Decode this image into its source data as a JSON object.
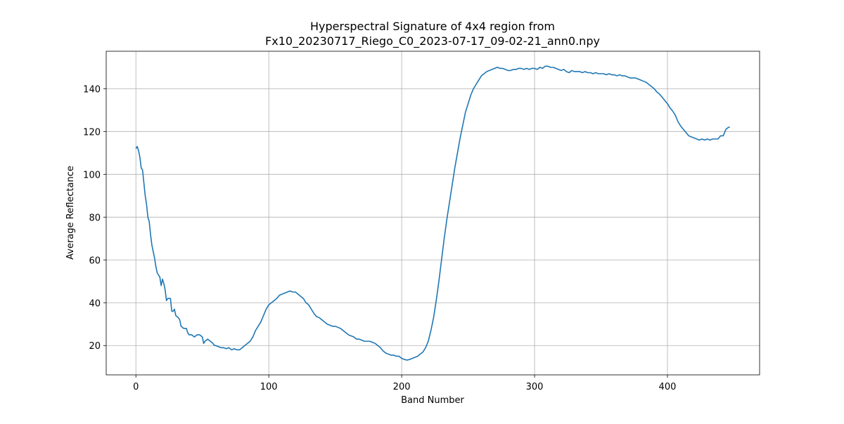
{
  "chart_data": {
    "type": "line",
    "title": [
      "Hyperspectral Signature of 4x4 region from",
      "Fx10_20230717_Riego_C0_2023-07-17_09-02-21_ann0.npy"
    ],
    "x_label": "Band Number",
    "y_label": "Average Reflectance",
    "x": [
      0,
      1,
      2,
      3,
      4,
      5,
      6,
      7,
      8,
      9,
      10,
      11,
      12,
      13,
      14,
      15,
      16,
      17,
      18,
      19,
      20,
      21,
      22,
      23,
      24,
      26,
      27,
      28,
      29,
      30,
      32,
      33,
      34,
      36,
      38,
      39,
      40,
      42,
      44,
      46,
      48,
      50,
      51,
      52,
      54,
      56,
      58,
      59,
      60,
      62,
      64,
      66,
      68,
      70,
      72,
      74,
      76,
      78,
      80,
      82,
      84,
      86,
      88,
      90,
      92,
      94,
      96,
      98,
      100,
      102,
      104,
      106,
      108,
      110,
      112,
      114,
      116,
      118,
      120,
      122,
      124,
      126,
      128,
      130,
      132,
      134,
      136,
      138,
      140,
      142,
      144,
      146,
      148,
      150,
      152,
      154,
      156,
      158,
      160,
      162,
      164,
      166,
      168,
      170,
      172,
      174,
      176,
      178,
      180,
      182,
      184,
      186,
      188,
      190,
      192,
      194,
      196,
      198,
      200,
      202,
      204,
      206,
      208,
      210,
      212,
      214,
      216,
      218,
      220,
      222,
      224,
      226,
      228,
      230,
      232,
      234,
      236,
      238,
      240,
      242,
      244,
      246,
      248,
      250,
      252,
      254,
      256,
      258,
      260,
      262,
      264,
      266,
      268,
      270,
      272,
      274,
      276,
      278,
      280,
      282,
      284,
      286,
      288,
      290,
      292,
      294,
      296,
      298,
      300,
      302,
      304,
      306,
      308,
      310,
      312,
      314,
      316,
      318,
      320,
      322,
      324,
      326,
      328,
      330,
      332,
      334,
      336,
      338,
      340,
      342,
      344,
      346,
      348,
      350,
      352,
      354,
      356,
      358,
      360,
      362,
      364,
      366,
      368,
      370,
      372,
      374,
      376,
      378,
      380,
      382,
      384,
      386,
      388,
      390,
      392,
      394,
      396,
      398,
      400,
      402,
      404,
      406,
      408,
      410,
      412,
      414,
      416,
      418,
      420,
      422,
      424,
      426,
      428,
      430,
      432,
      434,
      436,
      438,
      440,
      442,
      444,
      446,
      447
    ],
    "values": [
      112,
      113,
      111,
      108,
      103,
      102,
      96,
      90,
      86,
      80,
      78,
      72,
      67,
      64,
      61,
      57,
      54,
      53,
      52,
      48,
      51,
      49,
      46,
      41,
      42,
      42,
      36,
      36,
      37,
      34,
      33,
      32,
      29,
      28,
      28,
      26,
      25,
      25,
      24,
      25,
      25,
      24,
      21,
      22,
      23,
      22,
      21,
      20,
      20,
      19.5,
      19,
      19,
      18.5,
      19,
      18,
      18.5,
      18,
      18,
      19,
      20,
      21,
      22,
      24,
      27,
      29,
      31,
      34,
      37,
      39,
      40,
      41,
      42,
      43.5,
      44,
      44.5,
      45,
      45.5,
      45,
      45,
      44,
      43,
      42,
      40,
      39,
      37,
      35,
      33.5,
      33,
      32,
      31,
      30,
      29.5,
      29,
      29,
      28.5,
      28,
      27,
      26,
      25,
      24.5,
      24,
      23,
      23,
      22.5,
      22,
      22,
      22,
      21.5,
      21,
      20,
      19,
      17.5,
      16.5,
      16,
      15.5,
      15.5,
      15,
      15,
      14,
      13.5,
      13.2,
      13.5,
      14,
      14.5,
      15,
      16,
      17,
      19,
      22,
      27,
      33,
      41,
      50,
      60,
      70,
      79,
      87,
      95,
      103,
      110,
      117,
      123,
      129,
      133,
      137,
      140,
      142,
      144,
      146,
      147,
      148,
      148.5,
      149,
      149.5,
      150,
      149.5,
      149.5,
      149,
      148.5,
      148.5,
      149,
      149,
      149.5,
      149.5,
      149,
      149.5,
      149,
      149.5,
      149.5,
      149,
      150,
      149.5,
      150.5,
      150.5,
      150,
      150,
      149.5,
      149,
      148.5,
      149,
      148,
      147.5,
      148.5,
      148,
      148,
      148,
      147.5,
      148,
      147.5,
      147.5,
      147,
      147.5,
      147,
      147,
      147,
      146.5,
      147,
      146.5,
      146.5,
      146,
      146.5,
      146,
      146,
      145.5,
      145,
      145,
      145,
      144.5,
      144,
      143.5,
      143,
      142,
      141,
      140,
      138.5,
      137.5,
      136,
      134.5,
      133,
      131,
      129.5,
      127.5,
      124.5,
      122.5,
      121,
      119.5,
      118,
      117.5,
      117,
      116.5,
      116,
      116.5,
      116,
      116.5,
      116,
      116.5,
      116.5,
      116.5,
      118,
      118,
      121,
      122,
      122
    ],
    "color": "#1f77b4",
    "xlim": [
      -22.35,
      469.35
    ],
    "xticks": [
      0,
      100,
      200,
      300,
      400
    ],
    "ylim": [
      6.3,
      157.5
    ],
    "yticks": [
      20,
      40,
      60,
      80,
      100,
      120,
      140
    ],
    "grid": true
  }
}
